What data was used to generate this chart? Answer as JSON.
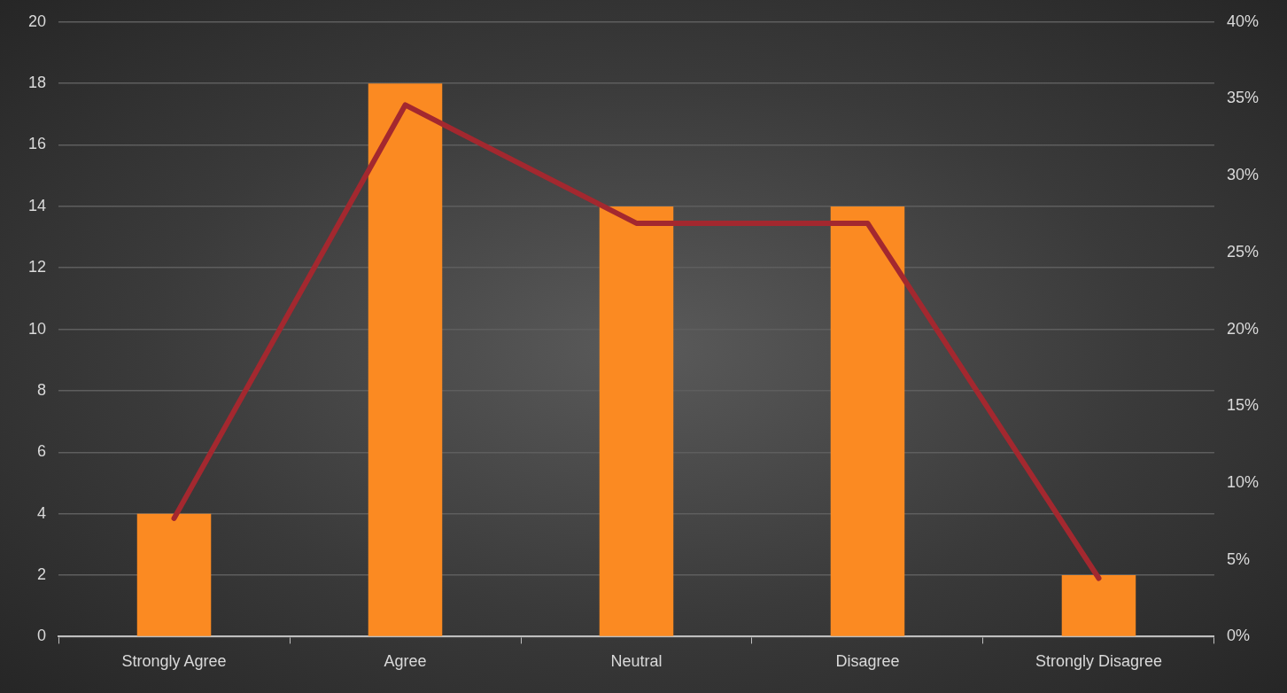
{
  "chart_data": {
    "type": "bar",
    "categories": [
      "Strongly Agree",
      "Agree",
      "Neutral",
      "Disagree",
      "Strongly Disagree"
    ],
    "series": [
      {
        "color": "#fb8a22",
        "values": [
          4,
          18,
          14,
          14,
          2
        ]
      },
      {
        "type": "line",
        "axis": "y2",
        "color": "#a3282f",
        "values": [
          7.7,
          34.6,
          26.9,
          26.9,
          3.8
        ]
      }
    ],
    "ylim": [
      0,
      20
    ],
    "yticks": [
      0,
      2,
      4,
      6,
      8,
      10,
      12,
      14,
      16,
      18,
      20
    ],
    "y2lim": [
      0,
      40
    ],
    "y2ticks": [
      {
        "value": 0,
        "label": "0%"
      },
      {
        "value": 5,
        "label": "5%"
      },
      {
        "value": 10,
        "label": "10%"
      },
      {
        "value": 15,
        "label": "15%"
      },
      {
        "value": 20,
        "label": "20%"
      },
      {
        "value": 25,
        "label": "25%"
      },
      {
        "value": 30,
        "label": "30%"
      },
      {
        "value": 35,
        "label": "35%"
      },
      {
        "value": 40,
        "label": "40%"
      }
    ],
    "grid": "y",
    "legend": false,
    "marker": "none",
    "line_style": "solid"
  }
}
